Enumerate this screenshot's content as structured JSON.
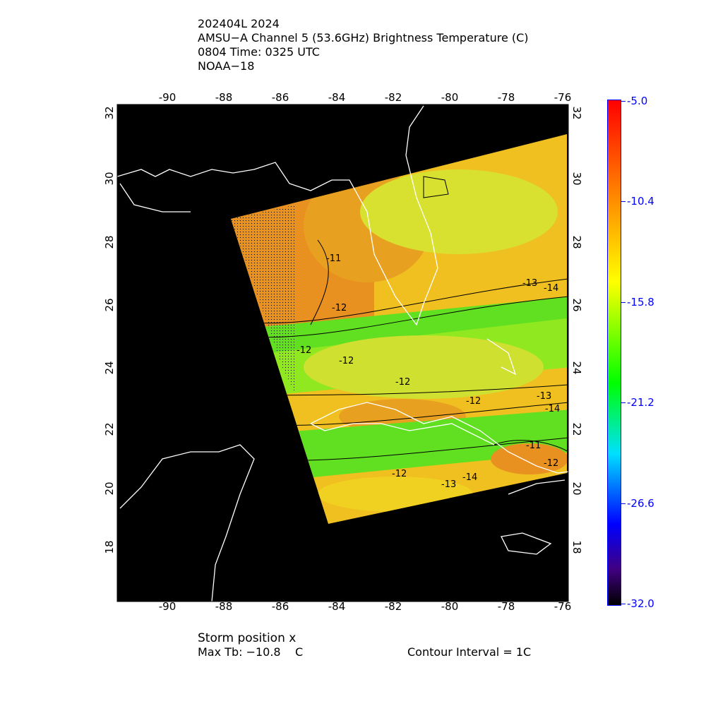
{
  "title": {
    "line1": "202404L 2024",
    "line2": "AMSU−A Channel 5 (53.6GHz) Brightness Temperature (C)",
    "line3": "0804 Time: 0325 UTC",
    "line4": "NOAA−18"
  },
  "footer": {
    "storm": "Storm position x",
    "max_tb": "Max Tb: −10.8    C",
    "contour": "Contour Interval = 1C"
  },
  "chart_data": {
    "type": "heatmap",
    "lon_ticks": [
      "-90",
      "-88",
      "-86",
      "-84",
      "-82",
      "-80",
      "-78",
      "-76"
    ],
    "lat_ticks": [
      "32",
      "30",
      "28",
      "26",
      "24",
      "22",
      "20",
      "18"
    ],
    "lon_range": [
      -91.8,
      -75.8
    ],
    "lat_range": [
      16.3,
      32.3
    ],
    "colorbar": {
      "labels": [
        "-5.0",
        "-10.4",
        "-15.8",
        "-21.2",
        "-26.6",
        "-32.0"
      ],
      "range": [
        -32.0,
        -5.0
      ]
    },
    "contour_labels": [
      "-11",
      "-12",
      "-12",
      "-12",
      "-13",
      "-14",
      "-12",
      "-12",
      "-13",
      "-14",
      "-11",
      "-12",
      "-12",
      "-13",
      "-14"
    ],
    "colors": {
      "background": "#000000",
      "coastline": "#ffffff",
      "labels": "#0000ff"
    }
  }
}
